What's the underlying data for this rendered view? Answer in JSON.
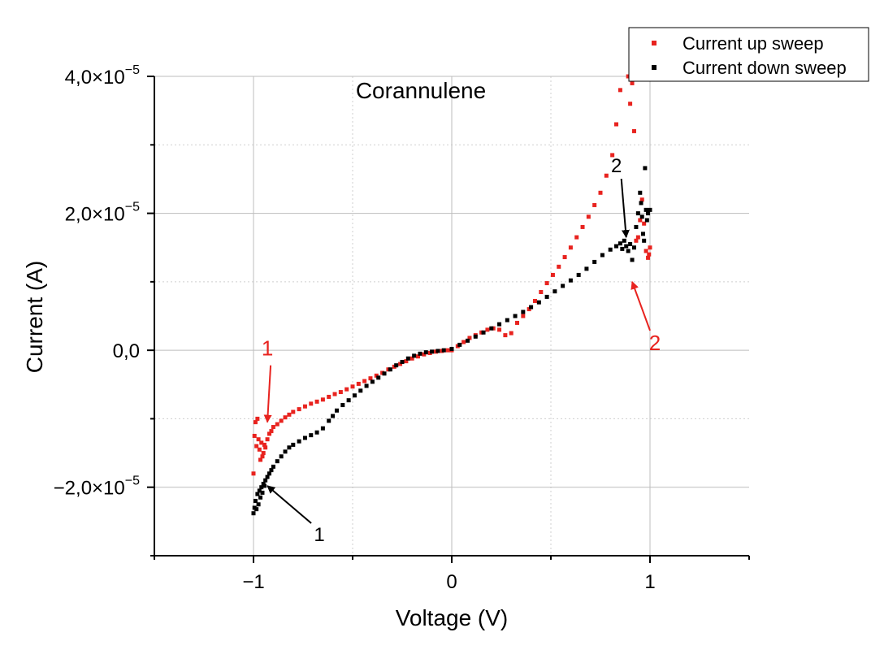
{
  "chart_data": {
    "type": "scatter",
    "title": "Corannulene",
    "xlabel": "Voltage (V)",
    "ylabel": "Current (A)",
    "xlim": [
      -1.5,
      1.5
    ],
    "ylim": [
      -3e-05,
      4e-05
    ],
    "grid": true,
    "legend_position": "top-right",
    "x_ticks": [
      -1,
      0,
      1
    ],
    "x_tick_labels": [
      "−1",
      "0",
      "1"
    ],
    "y_ticks": [
      -2e-05,
      0,
      2e-05,
      4e-05
    ],
    "y_tick_labels": [
      {
        "mantissa": "−2,0×10",
        "exp": "−5"
      },
      {
        "mantissa": "0,0",
        "exp": ""
      },
      {
        "mantissa": "2,0×10",
        "exp": "−5"
      },
      {
        "mantissa": "4,0×10",
        "exp": "−5"
      }
    ],
    "series": [
      {
        "name": "Current up sweep",
        "color": "#e8231f",
        "points": [
          [
            -1.0,
            -1.8e-05
          ],
          [
            -0.995,
            -1.25e-05
          ],
          [
            -0.99,
            -1.05e-05
          ],
          [
            -0.985,
            -1.4e-05
          ],
          [
            -0.98,
            -1e-05
          ],
          [
            -0.975,
            -1.3e-05
          ],
          [
            -0.97,
            -1.45e-05
          ],
          [
            -0.965,
            -1.6e-05
          ],
          [
            -0.96,
            -1.35e-05
          ],
          [
            -0.955,
            -1.55e-05
          ],
          [
            -0.95,
            -1.5e-05
          ],
          [
            -0.945,
            -1.38e-05
          ],
          [
            -0.94,
            -1.42e-05
          ],
          [
            -0.93,
            -1.3e-05
          ],
          [
            -0.92,
            -1.22e-05
          ],
          [
            -0.91,
            -1.18e-05
          ],
          [
            -0.9,
            -1.12e-05
          ],
          [
            -0.88,
            -1.08e-05
          ],
          [
            -0.86,
            -1.03e-05
          ],
          [
            -0.84,
            -9.8e-06
          ],
          [
            -0.82,
            -9.4e-06
          ],
          [
            -0.8,
            -9e-06
          ],
          [
            -0.77,
            -8.6e-06
          ],
          [
            -0.74,
            -8.2e-06
          ],
          [
            -0.71,
            -7.8e-06
          ],
          [
            -0.68,
            -7.5e-06
          ],
          [
            -0.65,
            -7.2e-06
          ],
          [
            -0.62,
            -6.8e-06
          ],
          [
            -0.59,
            -6.4e-06
          ],
          [
            -0.56,
            -6.1e-06
          ],
          [
            -0.53,
            -5.7e-06
          ],
          [
            -0.5,
            -5.3e-06
          ],
          [
            -0.47,
            -4.9e-06
          ],
          [
            -0.44,
            -4.5e-06
          ],
          [
            -0.41,
            -4.1e-06
          ],
          [
            -0.38,
            -3.7e-06
          ],
          [
            -0.35,
            -3.3e-06
          ],
          [
            -0.32,
            -2.8e-06
          ],
          [
            -0.29,
            -2.4e-06
          ],
          [
            -0.26,
            -2e-06
          ],
          [
            -0.23,
            -1.6e-06
          ],
          [
            -0.2,
            -1.2e-06
          ],
          [
            -0.17,
            -9e-07
          ],
          [
            -0.14,
            -6e-07
          ],
          [
            -0.11,
            -4e-07
          ],
          [
            -0.08,
            -2e-07
          ],
          [
            -0.05,
            -1e-07
          ],
          [
            -0.02,
            0.0
          ],
          [
            0.0,
            0.0
          ],
          [
            0.03,
            6e-07
          ],
          [
            0.06,
            1.2e-06
          ],
          [
            0.09,
            1.8e-06
          ],
          [
            0.12,
            2.2e-06
          ],
          [
            0.15,
            2.6e-06
          ],
          [
            0.18,
            3e-06
          ],
          [
            0.21,
            3.2e-06
          ],
          [
            0.24,
            3e-06
          ],
          [
            0.27,
            2.2e-06
          ],
          [
            0.3,
            2.5e-06
          ],
          [
            0.33,
            4e-06
          ],
          [
            0.36,
            5e-06
          ],
          [
            0.39,
            6e-06
          ],
          [
            0.42,
            7.2e-06
          ],
          [
            0.45,
            8.5e-06
          ],
          [
            0.48,
            9.8e-06
          ],
          [
            0.51,
            1.1e-05
          ],
          [
            0.54,
            1.22e-05
          ],
          [
            0.57,
            1.36e-05
          ],
          [
            0.6,
            1.5e-05
          ],
          [
            0.63,
            1.65e-05
          ],
          [
            0.66,
            1.8e-05
          ],
          [
            0.69,
            1.95e-05
          ],
          [
            0.72,
            2.12e-05
          ],
          [
            0.75,
            2.3e-05
          ],
          [
            0.78,
            2.55e-05
          ],
          [
            0.81,
            2.85e-05
          ],
          [
            0.83,
            3.3e-05
          ],
          [
            0.85,
            3.8e-05
          ],
          [
            0.87,
            4.2e-05
          ],
          [
            0.89,
            4e-05
          ],
          [
            0.9,
            3.6e-05
          ],
          [
            0.91,
            3.9e-05
          ],
          [
            0.92,
            3.2e-05
          ],
          [
            0.93,
            1.6e-05
          ],
          [
            0.94,
            1.65e-05
          ],
          [
            0.95,
            1.9e-05
          ],
          [
            0.96,
            2.2e-05
          ],
          [
            0.97,
            1.85e-05
          ],
          [
            0.98,
            1.45e-05
          ],
          [
            0.99,
            1.35e-05
          ],
          [
            0.995,
            1.4e-05
          ],
          [
            1.0,
            1.5e-05
          ]
        ]
      },
      {
        "name": "Current down sweep",
        "color": "#000000",
        "points": [
          [
            -1.0,
            -2.38e-05
          ],
          [
            -0.995,
            -2.3e-05
          ],
          [
            -0.99,
            -2.2e-05
          ],
          [
            -0.985,
            -2.32e-05
          ],
          [
            -0.98,
            -2.1e-05
          ],
          [
            -0.975,
            -2.25e-05
          ],
          [
            -0.97,
            -2.05e-05
          ],
          [
            -0.965,
            -2.15e-05
          ],
          [
            -0.96,
            -2e-05
          ],
          [
            -0.955,
            -2.08e-05
          ],
          [
            -0.95,
            -1.95e-05
          ],
          [
            -0.945,
            -1.98e-05
          ],
          [
            -0.94,
            -1.9e-05
          ],
          [
            -0.93,
            -1.85e-05
          ],
          [
            -0.92,
            -1.8e-05
          ],
          [
            -0.91,
            -1.75e-05
          ],
          [
            -0.9,
            -1.7e-05
          ],
          [
            -0.88,
            -1.62e-05
          ],
          [
            -0.86,
            -1.55e-05
          ],
          [
            -0.84,
            -1.48e-05
          ],
          [
            -0.82,
            -1.42e-05
          ],
          [
            -0.8,
            -1.38e-05
          ],
          [
            -0.77,
            -1.33e-05
          ],
          [
            -0.74,
            -1.28e-05
          ],
          [
            -0.71,
            -1.24e-05
          ],
          [
            -0.68,
            -1.2e-05
          ],
          [
            -0.65,
            -1.14e-05
          ],
          [
            -0.62,
            -1.03e-05
          ],
          [
            -0.6,
            -9.6e-06
          ],
          [
            -0.58,
            -8.8e-06
          ],
          [
            -0.55,
            -8e-06
          ],
          [
            -0.52,
            -7.3e-06
          ],
          [
            -0.49,
            -6.6e-06
          ],
          [
            -0.46,
            -5.9e-06
          ],
          [
            -0.43,
            -5.2e-06
          ],
          [
            -0.4,
            -4.6e-06
          ],
          [
            -0.37,
            -4e-06
          ],
          [
            -0.34,
            -3.4e-06
          ],
          [
            -0.31,
            -2.8e-06
          ],
          [
            -0.28,
            -2.2e-06
          ],
          [
            -0.25,
            -1.7e-06
          ],
          [
            -0.22,
            -1.2e-06
          ],
          [
            -0.19,
            -8e-07
          ],
          [
            -0.16,
            -5e-07
          ],
          [
            -0.13,
            -3e-07
          ],
          [
            -0.1,
            -2e-07
          ],
          [
            -0.07,
            -1e-07
          ],
          [
            -0.04,
            0.0
          ],
          [
            0.0,
            2e-07
          ],
          [
            0.04,
            8e-07
          ],
          [
            0.08,
            1.4e-06
          ],
          [
            0.12,
            2e-06
          ],
          [
            0.16,
            2.6e-06
          ],
          [
            0.2,
            3.2e-06
          ],
          [
            0.24,
            3.8e-06
          ],
          [
            0.28,
            4.4e-06
          ],
          [
            0.32,
            5e-06
          ],
          [
            0.36,
            5.6e-06
          ],
          [
            0.4,
            6.3e-06
          ],
          [
            0.44,
            7e-06
          ],
          [
            0.48,
            7.8e-06
          ],
          [
            0.52,
            8.6e-06
          ],
          [
            0.56,
            9.4e-06
          ],
          [
            0.6,
            1.02e-05
          ],
          [
            0.64,
            1.1e-05
          ],
          [
            0.68,
            1.19e-05
          ],
          [
            0.72,
            1.29e-05
          ],
          [
            0.76,
            1.39e-05
          ],
          [
            0.8,
            1.47e-05
          ],
          [
            0.83,
            1.52e-05
          ],
          [
            0.85,
            1.56e-05
          ],
          [
            0.86,
            1.48e-05
          ],
          [
            0.87,
            1.6e-05
          ],
          [
            0.88,
            1.52e-05
          ],
          [
            0.89,
            1.45e-05
          ],
          [
            0.9,
            1.55e-05
          ],
          [
            0.91,
            1.32e-05
          ],
          [
            0.92,
            1.5e-05
          ],
          [
            0.93,
            1.8e-05
          ],
          [
            0.94,
            2e-05
          ],
          [
            0.95,
            2.3e-05
          ],
          [
            0.955,
            2.15e-05
          ],
          [
            0.96,
            1.95e-05
          ],
          [
            0.965,
            1.7e-05
          ],
          [
            0.97,
            1.6e-05
          ],
          [
            0.975,
            2.66e-05
          ],
          [
            0.98,
            2.05e-05
          ],
          [
            0.985,
            1.9e-05
          ],
          [
            0.99,
            2e-05
          ],
          [
            1.0,
            2.05e-05
          ]
        ]
      }
    ],
    "annotations": [
      {
        "label": "1",
        "color": "#e8231f",
        "series": "Current up sweep",
        "x": -0.93,
        "y": -1.05e-05
      },
      {
        "label": "2",
        "color": "#e8231f",
        "series": "Current up sweep",
        "x": 0.91,
        "y": 1e-05
      },
      {
        "label": "1",
        "color": "#000000",
        "series": "Current down sweep",
        "x": -0.93,
        "y": -1.98e-05
      },
      {
        "label": "2",
        "color": "#000000",
        "series": "Current down sweep",
        "x": 0.88,
        "y": 1.65e-05
      }
    ]
  }
}
